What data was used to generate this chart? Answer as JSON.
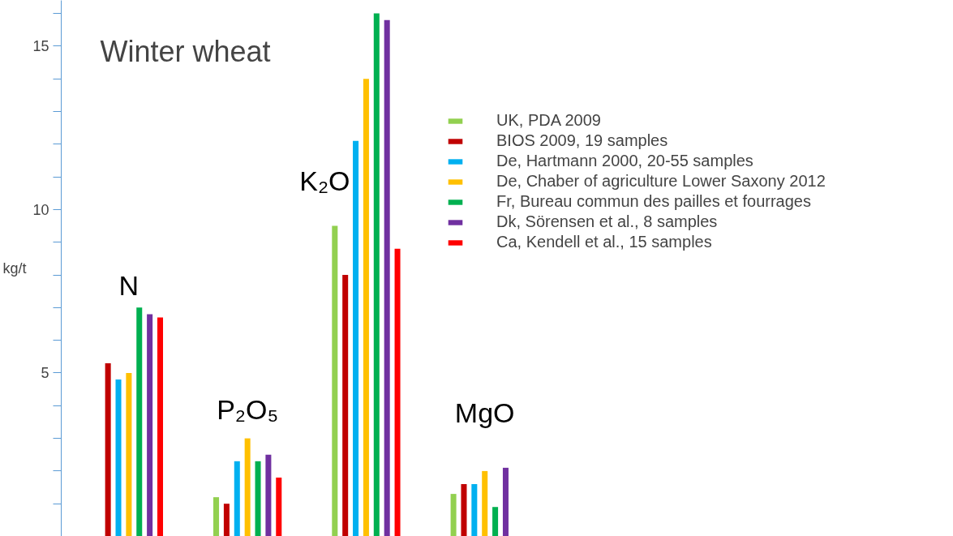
{
  "chart_data": {
    "type": "bar",
    "title": "Winter wheat",
    "ylabel": "kg/t",
    "categories": [
      "N",
      "P₂O₅",
      "K₂O",
      "MgO"
    ],
    "series": [
      {
        "name": "UK, PDA 2009",
        "color": "#92d050",
        "values": [
          null,
          1.2,
          9.5,
          1.3
        ]
      },
      {
        "name": "BIOS 2009, 19 samples",
        "color": "#c00000",
        "values": [
          5.3,
          1.0,
          8.0,
          1.6
        ]
      },
      {
        "name": "De, Hartmann 2000, 20-55 samples",
        "color": "#00b0f0",
        "values": [
          4.8,
          2.3,
          12.1,
          1.6
        ]
      },
      {
        "name": "De, Chaber of agriculture Lower Saxony 2012",
        "color": "#ffc000",
        "values": [
          5.0,
          3.0,
          14.0,
          2.0
        ]
      },
      {
        "name": "Fr, Bureau commun des pailles et fourrages",
        "color": "#00b050",
        "values": [
          7.0,
          2.3,
          16.0,
          0.9
        ]
      },
      {
        "name": "Dk, Sörensen et al., 8 samples",
        "color": "#7030a0",
        "values": [
          6.8,
          2.5,
          15.8,
          2.1
        ]
      },
      {
        "name": "Ca, Kendell et al., 15 samples",
        "color": "#ff0000",
        "values": [
          6.7,
          1.8,
          8.8,
          null
        ]
      }
    ],
    "ylim": [
      0,
      16.4
    ],
    "yticks": [
      {
        "value": 1,
        "label": null
      },
      {
        "value": 2,
        "label": null
      },
      {
        "value": 3,
        "label": null
      },
      {
        "value": 4,
        "label": null
      },
      5,
      {
        "value": 6,
        "label": null
      },
      {
        "value": 7,
        "label": null
      },
      {
        "value": 8,
        "label": null
      },
      {
        "value": 9,
        "label": null
      },
      10,
      {
        "value": 11,
        "label": null
      },
      {
        "value": 12,
        "label": null
      },
      {
        "value": 13,
        "label": null
      },
      {
        "value": 14,
        "label": null
      },
      15,
      {
        "value": 16,
        "label": null
      }
    ],
    "tick_labels": "y",
    "grid": false,
    "legend": "top right"
  }
}
